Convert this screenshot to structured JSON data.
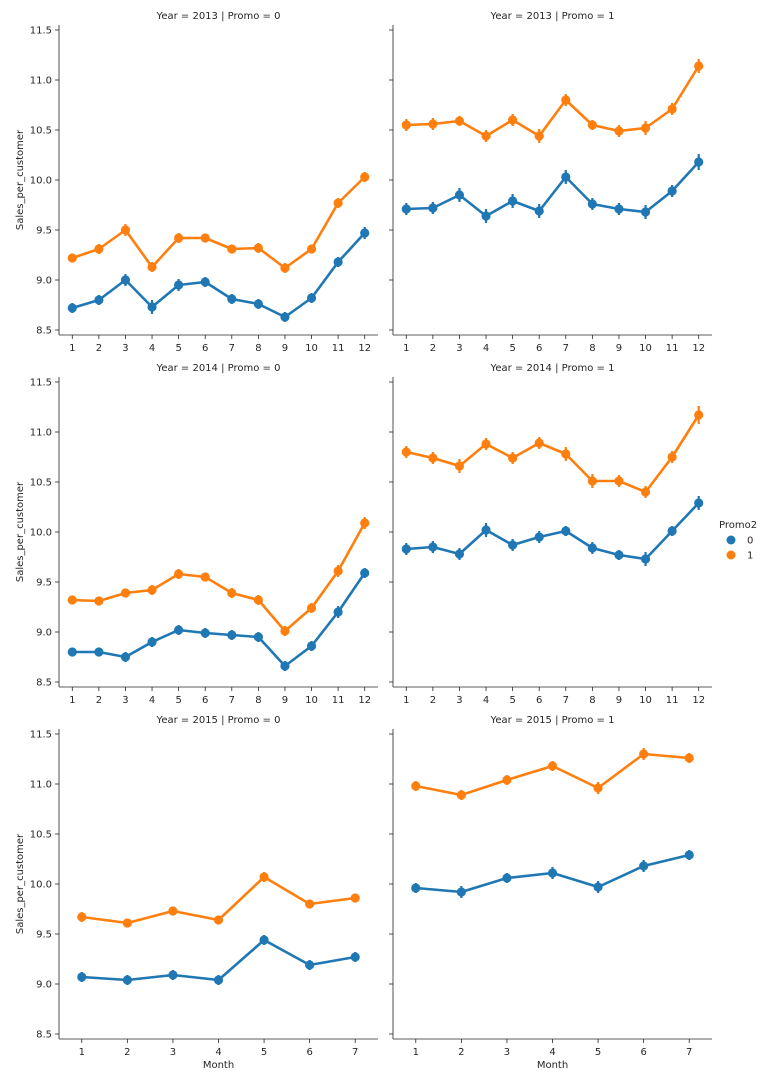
{
  "figure": {
    "xlabel": "Month",
    "ylabel": "Sales_per_customer"
  },
  "legend": {
    "title": "Promo2",
    "entries": [
      {
        "label": "0",
        "color": "#1f77b4"
      },
      {
        "label": "1",
        "color": "#ff7f0e"
      }
    ]
  },
  "chart_data": {
    "type": "line",
    "ylim": [
      8.45,
      11.55
    ],
    "yticks": [
      8.5,
      9.0,
      9.5,
      10.0,
      10.5,
      11.0,
      11.5
    ],
    "ytick_labels": [
      "8.5",
      "9.0",
      "9.5",
      "10.0",
      "10.5",
      "11.0",
      "11.5"
    ],
    "grid": false,
    "legend_position": "right",
    "facets": [
      {
        "title": "Year = 2013 | Promo = 0",
        "categories": [
          "1",
          "2",
          "3",
          "4",
          "5",
          "6",
          "7",
          "8",
          "9",
          "10",
          "11",
          "12"
        ],
        "series": [
          {
            "name": "0",
            "color": "#1f77b4",
            "values": [
              8.72,
              8.8,
              9.0,
              8.73,
              8.95,
              8.98,
              8.81,
              8.76,
              8.63,
              8.82,
              9.18,
              9.47
            ],
            "err": [
              0.05,
              0.05,
              0.06,
              0.07,
              0.06,
              0.05,
              0.05,
              0.05,
              0.05,
              0.05,
              0.05,
              0.06
            ]
          },
          {
            "name": "1",
            "color": "#ff7f0e",
            "values": [
              9.22,
              9.31,
              9.5,
              9.13,
              9.42,
              9.42,
              9.31,
              9.32,
              9.12,
              9.31,
              9.77,
              10.03
            ],
            "err": [
              0.04,
              0.05,
              0.06,
              0.05,
              0.05,
              0.04,
              0.04,
              0.05,
              0.05,
              0.04,
              0.05,
              0.05
            ]
          }
        ]
      },
      {
        "title": "Year = 2013 | Promo = 1",
        "categories": [
          "1",
          "2",
          "3",
          "4",
          "5",
          "6",
          "7",
          "8",
          "9",
          "10",
          "11",
          "12"
        ],
        "series": [
          {
            "name": "0",
            "color": "#1f77b4",
            "values": [
              9.71,
              9.72,
              9.85,
              9.64,
              9.79,
              9.69,
              10.03,
              9.76,
              9.71,
              9.68,
              9.89,
              10.18
            ],
            "err": [
              0.06,
              0.06,
              0.07,
              0.07,
              0.07,
              0.07,
              0.07,
              0.06,
              0.06,
              0.07,
              0.06,
              0.08
            ]
          },
          {
            "name": "1",
            "color": "#ff7f0e",
            "values": [
              10.55,
              10.56,
              10.59,
              10.44,
              10.6,
              10.44,
              10.8,
              10.55,
              10.49,
              10.52,
              10.71,
              11.14
            ],
            "err": [
              0.06,
              0.06,
              0.05,
              0.06,
              0.06,
              0.07,
              0.06,
              0.05,
              0.06,
              0.07,
              0.06,
              0.07
            ]
          }
        ]
      },
      {
        "title": "Year = 2014 | Promo = 0",
        "categories": [
          "1",
          "2",
          "3",
          "4",
          "5",
          "6",
          "7",
          "8",
          "9",
          "10",
          "11",
          "12"
        ],
        "series": [
          {
            "name": "0",
            "color": "#1f77b4",
            "values": [
              8.8,
              8.8,
              8.75,
              8.9,
              9.02,
              8.99,
              8.97,
              8.95,
              8.66,
              8.86,
              9.2,
              9.59
            ],
            "err": [
              0.04,
              0.04,
              0.05,
              0.05,
              0.05,
              0.05,
              0.05,
              0.05,
              0.05,
              0.05,
              0.06,
              0.05
            ]
          },
          {
            "name": "1",
            "color": "#ff7f0e",
            "values": [
              9.32,
              9.31,
              9.39,
              9.42,
              9.58,
              9.55,
              9.39,
              9.32,
              9.01,
              9.24,
              9.61,
              10.09
            ],
            "err": [
              0.04,
              0.04,
              0.04,
              0.05,
              0.05,
              0.04,
              0.05,
              0.05,
              0.05,
              0.05,
              0.06,
              0.06
            ]
          }
        ]
      },
      {
        "title": "Year = 2014 | Promo = 1",
        "categories": [
          "1",
          "2",
          "3",
          "4",
          "5",
          "6",
          "7",
          "8",
          "9",
          "10",
          "11",
          "12"
        ],
        "series": [
          {
            "name": "0",
            "color": "#1f77b4",
            "values": [
              9.83,
              9.85,
              9.78,
              10.02,
              9.87,
              9.95,
              10.01,
              9.84,
              9.77,
              9.73,
              10.01,
              10.29
            ],
            "err": [
              0.06,
              0.06,
              0.06,
              0.07,
              0.06,
              0.06,
              0.05,
              0.06,
              0.05,
              0.07,
              0.05,
              0.07
            ]
          },
          {
            "name": "1",
            "color": "#ff7f0e",
            "values": [
              10.8,
              10.74,
              10.66,
              10.88,
              10.74,
              10.89,
              10.78,
              10.51,
              10.51,
              10.4,
              10.75,
              11.17
            ],
            "err": [
              0.06,
              0.06,
              0.07,
              0.06,
              0.06,
              0.06,
              0.07,
              0.07,
              0.06,
              0.06,
              0.06,
              0.09
            ]
          }
        ]
      },
      {
        "title": "Year = 2015 | Promo = 0",
        "categories": [
          "1",
          "2",
          "3",
          "4",
          "5",
          "6",
          "7"
        ],
        "series": [
          {
            "name": "0",
            "color": "#1f77b4",
            "values": [
              9.07,
              9.04,
              9.09,
              9.04,
              9.44,
              9.19,
              9.27
            ],
            "err": [
              0.05,
              0.05,
              0.05,
              0.05,
              0.05,
              0.05,
              0.05
            ]
          },
          {
            "name": "1",
            "color": "#ff7f0e",
            "values": [
              9.67,
              9.61,
              9.73,
              9.64,
              10.07,
              9.8,
              9.86
            ],
            "err": [
              0.05,
              0.04,
              0.04,
              0.04,
              0.05,
              0.04,
              0.04
            ]
          }
        ]
      },
      {
        "title": "Year = 2015 | Promo = 1",
        "categories": [
          "1",
          "2",
          "3",
          "4",
          "5",
          "6",
          "7"
        ],
        "series": [
          {
            "name": "0",
            "color": "#1f77b4",
            "values": [
              9.96,
              9.92,
              10.06,
              10.11,
              9.97,
              10.18,
              10.29
            ],
            "err": [
              0.05,
              0.06,
              0.05,
              0.06,
              0.06,
              0.06,
              0.05
            ]
          },
          {
            "name": "1",
            "color": "#ff7f0e",
            "values": [
              10.98,
              10.89,
              11.04,
              11.18,
              10.96,
              11.3,
              11.26
            ],
            "err": [
              0.05,
              0.05,
              0.05,
              0.05,
              0.06,
              0.06,
              0.05
            ]
          }
        ]
      }
    ]
  }
}
